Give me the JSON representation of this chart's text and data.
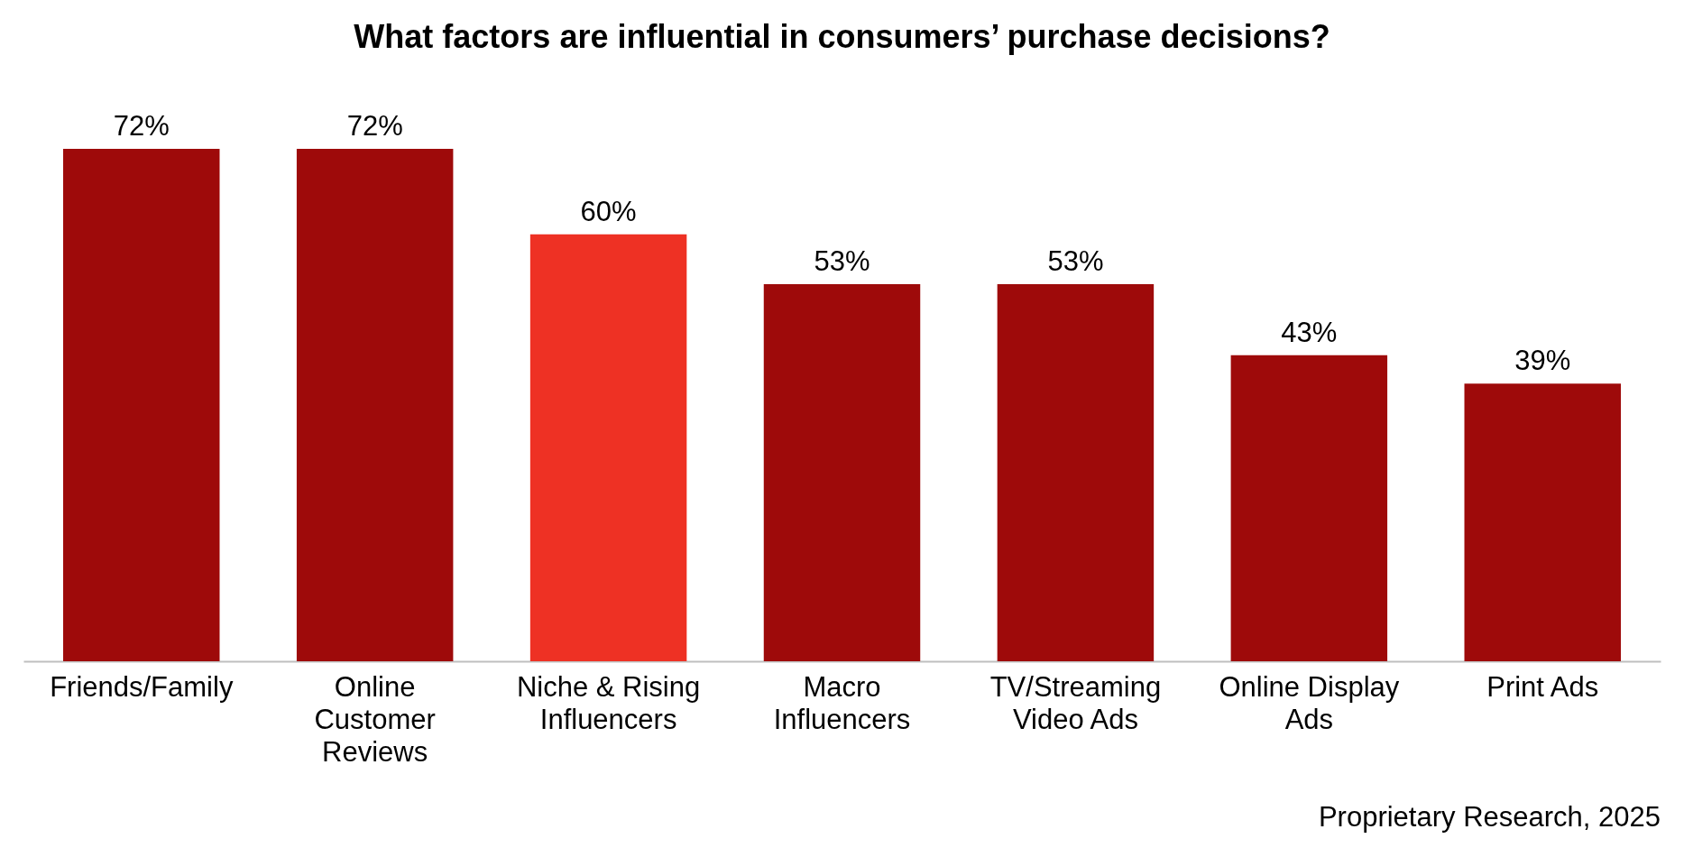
{
  "chart_data": {
    "type": "bar",
    "title": "What factors are influential in consumers’ purchase decisions?",
    "categories": [
      "Friends/Family",
      "Online Customer Reviews",
      "Niche & Rising Influencers",
      "Macro Influencers",
      "TV/Streaming Video Ads",
      "Online Display Ads",
      "Print Ads"
    ],
    "values": [
      72,
      72,
      60,
      53,
      53,
      43,
      39
    ],
    "colors": [
      "#9e0a0a",
      "#9e0a0a",
      "#ee3124",
      "#9e0a0a",
      "#9e0a0a",
      "#9e0a0a",
      "#9e0a0a"
    ],
    "value_labels": [
      "72%",
      "72%",
      "60%",
      "53%",
      "53%",
      "43%",
      "39%"
    ],
    "annotations": [
      "Proprietary Research, 2025"
    ]
  }
}
